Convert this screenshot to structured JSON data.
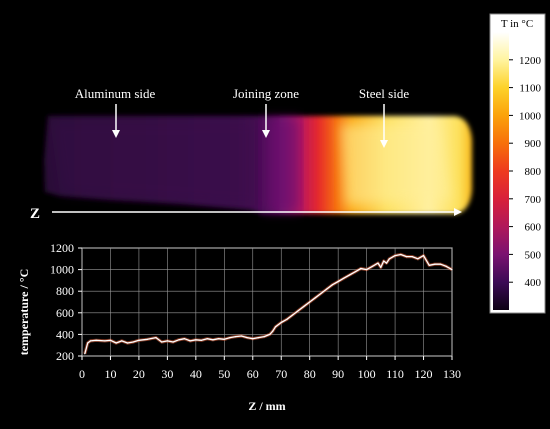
{
  "thermal_image": {
    "labels": {
      "aluminum": "Aluminum side",
      "joining": "Joining zone",
      "steel": "Steel side"
    },
    "z_axis_label": "Z"
  },
  "colorbar": {
    "title": "T in °C",
    "ticks": [
      400,
      500,
      600,
      700,
      800,
      900,
      1000,
      1100,
      1200
    ],
    "range": [
      300,
      1300
    ],
    "stops": [
      "#0d0014",
      "#3b0a55",
      "#7a1270",
      "#b0185a",
      "#d8203a",
      "#ee3a1e",
      "#f7700a",
      "#fba20a",
      "#fdd22a",
      "#fff4a0",
      "#ffffff"
    ]
  },
  "chart_data": {
    "type": "line",
    "title": "",
    "xlabel": "Z / mm",
    "ylabel": "temperature / °C",
    "xlim": [
      0,
      130
    ],
    "ylim": [
      200,
      1200
    ],
    "xticks": [
      0,
      10,
      20,
      30,
      40,
      50,
      60,
      70,
      80,
      90,
      100,
      110,
      120,
      130
    ],
    "yticks": [
      200,
      400,
      600,
      800,
      1000,
      1200
    ],
    "grid": true,
    "series": [
      {
        "x": [
          1,
          2,
          3,
          5,
          8,
          10,
          12,
          14,
          16,
          18,
          20,
          23,
          26,
          28,
          30,
          32,
          34,
          36,
          38,
          40,
          42,
          44,
          46,
          48,
          50,
          52,
          54,
          56,
          58,
          60,
          62,
          64,
          66,
          67,
          68,
          70,
          72,
          74,
          76,
          78,
          80,
          82,
          84,
          86,
          88,
          90,
          92,
          94,
          96,
          98,
          100,
          102,
          104,
          105,
          106,
          107,
          108,
          110,
          112,
          114,
          116,
          118,
          120,
          122,
          124,
          126,
          128,
          130
        ],
        "y": [
          220,
          320,
          340,
          345,
          340,
          345,
          320,
          340,
          320,
          330,
          345,
          355,
          370,
          330,
          340,
          330,
          350,
          360,
          340,
          350,
          345,
          360,
          350,
          360,
          355,
          370,
          380,
          385,
          370,
          360,
          370,
          380,
          400,
          430,
          470,
          510,
          540,
          580,
          620,
          660,
          700,
          740,
          780,
          820,
          860,
          890,
          920,
          950,
          980,
          1010,
          1000,
          1030,
          1060,
          1020,
          1080,
          1060,
          1100,
          1130,
          1140,
          1120,
          1120,
          1100,
          1130,
          1040,
          1050,
          1050,
          1030,
          1000
        ]
      }
    ]
  }
}
